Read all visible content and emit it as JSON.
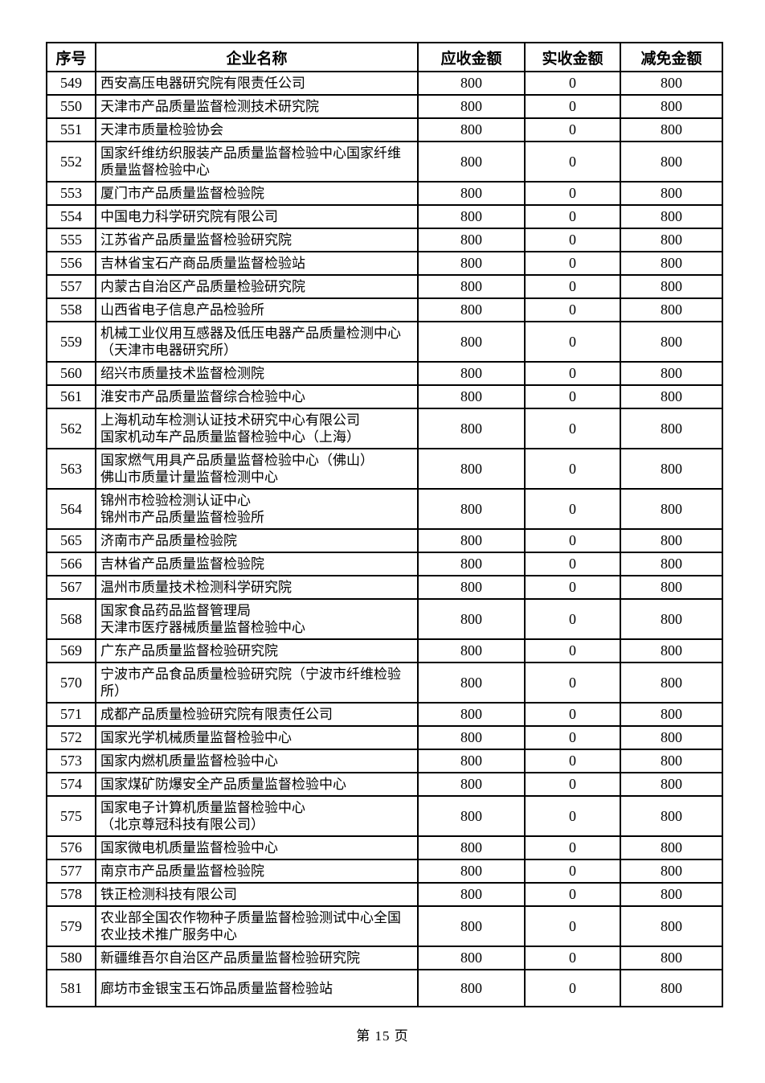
{
  "page": {
    "footer": "第 15 页"
  },
  "table": {
    "columns": [
      "序号",
      "企业名称",
      "应收金额",
      "实收金额",
      "减免金额"
    ],
    "rows": [
      {
        "no": "549",
        "name": "西安高压电器研究院有限责任公司",
        "receivable": "800",
        "received": "0",
        "reduced": "800"
      },
      {
        "no": "550",
        "name": "天津市产品质量监督检测技术研究院",
        "receivable": "800",
        "received": "0",
        "reduced": "800"
      },
      {
        "no": "551",
        "name": "天津市质量检验协会",
        "receivable": "800",
        "received": "0",
        "reduced": "800"
      },
      {
        "no": "552",
        "name": "国家纤维纺织服装产品质量监督检验中心国家纤维\n质量监督检验中心",
        "receivable": "800",
        "received": "0",
        "reduced": "800"
      },
      {
        "no": "553",
        "name": "厦门市产品质量监督检验院",
        "receivable": "800",
        "received": "0",
        "reduced": "800"
      },
      {
        "no": "554",
        "name": "中国电力科学研究院有限公司",
        "receivable": "800",
        "received": "0",
        "reduced": "800"
      },
      {
        "no": "555",
        "name": "江苏省产品质量监督检验研究院",
        "receivable": "800",
        "received": "0",
        "reduced": "800"
      },
      {
        "no": "556",
        "name": "吉林省宝石产商品质量监督检验站",
        "receivable": "800",
        "received": "0",
        "reduced": "800"
      },
      {
        "no": "557",
        "name": "内蒙古自治区产品质量检验研究院",
        "receivable": "800",
        "received": "0",
        "reduced": "800"
      },
      {
        "no": "558",
        "name": "山西省电子信息产品检验所",
        "receivable": "800",
        "received": "0",
        "reduced": "800"
      },
      {
        "no": "559",
        "name": "机械工业仪用互感器及低压电器产品质量检测中心\n（天津市电器研究所）",
        "receivable": "800",
        "received": "0",
        "reduced": "800"
      },
      {
        "no": "560",
        "name": "绍兴市质量技术监督检测院",
        "receivable": "800",
        "received": "0",
        "reduced": "800"
      },
      {
        "no": "561",
        "name": "淮安市产品质量监督综合检验中心",
        "receivable": "800",
        "received": "0",
        "reduced": "800"
      },
      {
        "no": "562",
        "name": "上海机动车检测认证技术研究中心有限公司\n国家机动车产品质量监督检验中心（上海）",
        "receivable": "800",
        "received": "0",
        "reduced": "800"
      },
      {
        "no": "563",
        "name": "国家燃气用具产品质量监督检验中心（佛山）\n佛山市质量计量监督检测中心",
        "receivable": "800",
        "received": "0",
        "reduced": "800"
      },
      {
        "no": "564",
        "name": "锦州市检验检测认证中心\n锦州市产品质量监督检验所",
        "receivable": "800",
        "received": "0",
        "reduced": "800"
      },
      {
        "no": "565",
        "name": "济南市产品质量检验院",
        "receivable": "800",
        "received": "0",
        "reduced": "800"
      },
      {
        "no": "566",
        "name": "吉林省产品质量监督检验院",
        "receivable": "800",
        "received": "0",
        "reduced": "800"
      },
      {
        "no": "567",
        "name": "温州市质量技术检测科学研究院",
        "receivable": "800",
        "received": "0",
        "reduced": "800"
      },
      {
        "no": "568",
        "name": "国家食品药品监督管理局\n天津市医疗器械质量监督检验中心",
        "receivable": "800",
        "received": "0",
        "reduced": "800"
      },
      {
        "no": "569",
        "name": "广东产品质量监督检验研究院",
        "receivable": "800",
        "received": "0",
        "reduced": "800"
      },
      {
        "no": "570",
        "name": "宁波市产品食品质量检验研究院（宁波市纤维检验\n所）",
        "receivable": "800",
        "received": "0",
        "reduced": "800"
      },
      {
        "no": "571",
        "name": "成都产品质量检验研究院有限责任公司",
        "receivable": "800",
        "received": "0",
        "reduced": "800"
      },
      {
        "no": "572",
        "name": "国家光学机械质量监督检验中心",
        "receivable": "800",
        "received": "0",
        "reduced": "800"
      },
      {
        "no": "573",
        "name": "国家内燃机质量监督检验中心",
        "receivable": "800",
        "received": "0",
        "reduced": "800"
      },
      {
        "no": "574",
        "name": "国家煤矿防爆安全产品质量监督检验中心",
        "receivable": "800",
        "received": "0",
        "reduced": "800"
      },
      {
        "no": "575",
        "name": "国家电子计算机质量监督检验中心\n（北京尊冠科技有限公司）",
        "receivable": "800",
        "received": "0",
        "reduced": "800"
      },
      {
        "no": "576",
        "name": "国家微电机质量监督检验中心",
        "receivable": "800",
        "received": "0",
        "reduced": "800"
      },
      {
        "no": "577",
        "name": "南京市产品质量监督检验院",
        "receivable": "800",
        "received": "0",
        "reduced": "800"
      },
      {
        "no": "578",
        "name": "铁正检测科技有限公司",
        "receivable": "800",
        "received": "0",
        "reduced": "800"
      },
      {
        "no": "579",
        "name": "农业部全国农作物种子质量监督检验测试中心全国\n农业技术推广服务中心",
        "receivable": "800",
        "received": "0",
        "reduced": "800"
      },
      {
        "no": "580",
        "name": "新疆维吾尔自治区产品质量监督检验研究院",
        "receivable": "800",
        "received": "0",
        "reduced": "800"
      },
      {
        "no": "581",
        "name": "廊坊市金银宝玉石饰品质量监督检验站",
        "receivable": "800",
        "received": "0",
        "reduced": "800"
      }
    ]
  }
}
